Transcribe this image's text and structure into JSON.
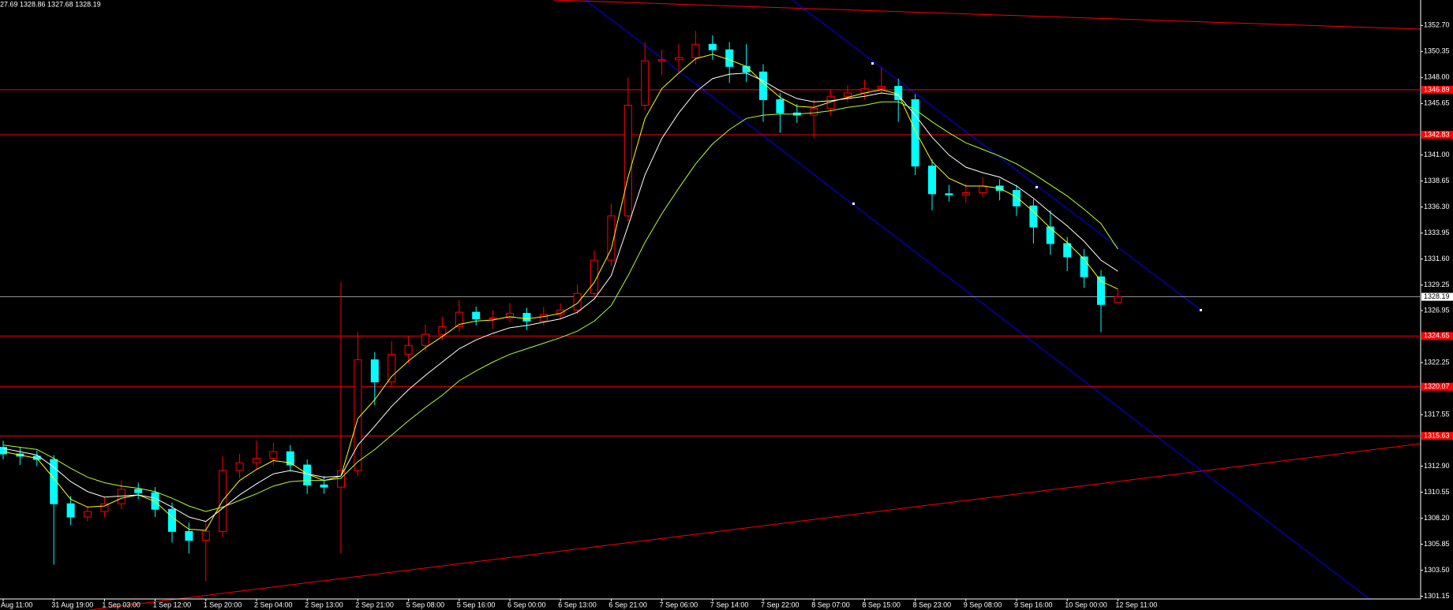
{
  "chart_data": {
    "type": "candlestick",
    "header": "27.69 1328.86 1327.68 1328.19",
    "categories": [
      "Aug 11:00",
      null,
      null,
      "31 Aug 19:00",
      null,
      null,
      "1 Sep 03:00",
      null,
      null,
      "1 Sep 12:00",
      null,
      null,
      "1 Sep 20:00",
      null,
      null,
      "2 Sep 04:00",
      null,
      null,
      "2 Sep 13:00",
      null,
      null,
      "2 Sep 21:00",
      null,
      null,
      "5 Sep 08:00",
      null,
      null,
      "5 Sep 16:00",
      null,
      null,
      "6 Sep 00:00",
      null,
      null,
      "6 Sep 13:00",
      null,
      null,
      "6 Sep 21:00",
      null,
      null,
      "7 Sep 06:00",
      null,
      null,
      "7 Sep 14:00",
      null,
      null,
      "7 Sep 22:00",
      null,
      null,
      "8 Sep 07:00",
      null,
      null,
      "8 Sep 15:00",
      null,
      null,
      "8 Sep 23:00",
      null,
      null,
      "9 Sep 08:00",
      null,
      null,
      "9 Sep 16:00",
      null,
      null,
      "10 Sep 00:00",
      null,
      null,
      "12 Sep 11:00"
    ],
    "open": [
      1314.6,
      1314.0,
      1313.8,
      1313.5,
      1309.5,
      1308.3,
      1308.8,
      1309.5,
      1310.8,
      1310.5,
      1309.0,
      1307.0,
      1306.2,
      1307.0,
      1312.5,
      1313.2,
      1313.6,
      1314.2,
      1313.0,
      1311.2,
      1311.0,
      1312.5,
      1322.5,
      1320.5,
      1323.0,
      1323.8,
      1324.8,
      1325.5,
      1326.8,
      1326.2,
      1326.3,
      1326.7,
      1326.0,
      1326.6,
      1327.0,
      1328.5,
      1331.5,
      1335.5,
      1345.5,
      1349.5,
      1349.6,
      1349.8,
      1351.0,
      1350.5,
      1349.0,
      1348.5,
      1346.0,
      1344.8,
      1344.6,
      1345.2,
      1346.3,
      1346.6,
      1347.0,
      1347.2,
      1346.0,
      1340.0,
      1337.5,
      1337.4,
      1337.6,
      1338.2,
      1337.8,
      1336.4,
      1334.5,
      1333.0,
      1331.8,
      1330.0,
      1327.69
    ],
    "high": [
      1315.2,
      1314.6,
      1314.3,
      1313.9,
      1310.2,
      1309.3,
      1310.1,
      1311.6,
      1311.4,
      1311.0,
      1309.6,
      1307.8,
      1307.8,
      1313.8,
      1314.0,
      1315.2,
      1315.0,
      1314.8,
      1313.5,
      1312.0,
      1329.5,
      1325.0,
      1323.2,
      1324.2,
      1324.6,
      1325.7,
      1326.4,
      1327.9,
      1327.3,
      1327.0,
      1327.6,
      1327.2,
      1327.3,
      1327.6,
      1329.3,
      1332.4,
      1336.6,
      1348.0,
      1351.2,
      1350.5,
      1351.0,
      1352.2,
      1351.8,
      1351.2,
      1351.0,
      1349.2,
      1346.6,
      1345.6,
      1346.0,
      1346.9,
      1347.3,
      1347.8,
      1348.9,
      1347.9,
      1346.5,
      1340.6,
      1338.3,
      1338.4,
      1339.0,
      1338.8,
      1338.3,
      1337.0,
      1336.0,
      1333.6,
      1332.5,
      1330.6,
      1328.86
    ],
    "low": [
      1313.5,
      1313.0,
      1312.9,
      1304.0,
      1307.6,
      1307.9,
      1308.3,
      1309.0,
      1309.9,
      1308.3,
      1306.0,
      1305.0,
      1302.5,
      1306.5,
      1311.8,
      1312.6,
      1313.0,
      1312.4,
      1310.4,
      1310.4,
      1305.0,
      1312.0,
      1318.4,
      1320.0,
      1322.2,
      1323.3,
      1324.3,
      1325.0,
      1325.6,
      1325.3,
      1325.9,
      1325.2,
      1325.6,
      1326.2,
      1326.6,
      1328.1,
      1331.0,
      1335.0,
      1345.0,
      1348.2,
      1348.5,
      1349.2,
      1349.6,
      1347.5,
      1347.6,
      1344.0,
      1343.0,
      1343.9,
      1342.5,
      1344.6,
      1345.8,
      1346.0,
      1346.5,
      1344.0,
      1339.2,
      1336.0,
      1336.8,
      1336.7,
      1337.2,
      1336.9,
      1335.5,
      1333.0,
      1332.0,
      1330.5,
      1329.0,
      1325.0,
      1327.68
    ],
    "close": [
      1314.0,
      1313.8,
      1313.5,
      1309.5,
      1308.3,
      1308.8,
      1309.5,
      1310.8,
      1310.5,
      1309.0,
      1307.0,
      1306.2,
      1307.0,
      1312.5,
      1313.2,
      1313.6,
      1314.2,
      1313.0,
      1311.2,
      1311.0,
      1312.5,
      1322.5,
      1320.5,
      1323.0,
      1323.8,
      1324.8,
      1325.5,
      1326.8,
      1326.2,
      1326.3,
      1326.7,
      1326.0,
      1326.6,
      1327.0,
      1328.5,
      1331.5,
      1335.5,
      1345.5,
      1349.5,
      1349.6,
      1349.8,
      1351.0,
      1350.5,
      1349.0,
      1348.5,
      1346.0,
      1344.8,
      1344.6,
      1345.2,
      1346.3,
      1346.6,
      1347.0,
      1347.2,
      1346.0,
      1340.0,
      1337.5,
      1337.4,
      1337.6,
      1338.2,
      1337.8,
      1336.4,
      1334.5,
      1333.0,
      1331.8,
      1330.0,
      1327.5,
      1328.19
    ],
    "up_color": "#ff0000",
    "down_color": "#00ffff",
    "ma": [
      {
        "color": "#ffff00",
        "values": [
          1314.2,
          1313.9,
          1313.6,
          1311.8,
          1309.9,
          1309.2,
          1309.3,
          1310.0,
          1310.3,
          1309.7,
          1308.3,
          1307.2,
          1307.1,
          1309.8,
          1311.6,
          1312.6,
          1313.4,
          1313.2,
          1312.2,
          1311.6,
          1312.0,
          1317.2,
          1318.9,
          1321.0,
          1322.4,
          1323.6,
          1324.6,
          1325.7,
          1326.0,
          1326.1,
          1326.4,
          1326.2,
          1326.4,
          1326.7,
          1327.6,
          1329.5,
          1332.5,
          1339.0,
          1344.3,
          1347.0,
          1348.4,
          1349.7,
          1350.1,
          1349.6,
          1349.0,
          1347.5,
          1346.2,
          1345.4,
          1345.3,
          1345.8,
          1346.2,
          1346.6,
          1346.9,
          1346.5,
          1343.2,
          1340.4,
          1338.9,
          1338.2,
          1338.2,
          1338.0,
          1337.2,
          1335.9,
          1334.4,
          1333.1,
          1331.6,
          1329.6,
          1328.9
        ]
      },
      {
        "color": "#ffffff",
        "values": [
          1314.5,
          1314.2,
          1313.9,
          1312.8,
          1311.5,
          1310.6,
          1310.1,
          1310.2,
          1310.3,
          1310.0,
          1309.2,
          1308.3,
          1307.9,
          1309.1,
          1310.3,
          1311.3,
          1312.2,
          1312.5,
          1312.2,
          1311.9,
          1312.0,
          1314.8,
          1316.5,
          1318.3,
          1319.8,
          1321.1,
          1322.3,
          1323.5,
          1324.3,
          1324.9,
          1325.4,
          1325.6,
          1325.9,
          1326.2,
          1326.8,
          1328.0,
          1330.1,
          1334.6,
          1339.2,
          1342.5,
          1344.8,
          1346.7,
          1347.9,
          1348.3,
          1348.4,
          1347.7,
          1346.8,
          1346.1,
          1345.8,
          1345.9,
          1346.1,
          1346.3,
          1346.6,
          1346.4,
          1344.6,
          1342.6,
          1341.0,
          1339.9,
          1339.4,
          1339.0,
          1338.2,
          1337.1,
          1335.8,
          1334.6,
          1333.2,
          1331.5,
          1330.5
        ]
      },
      {
        "color": "#adff2f",
        "values": [
          1314.8,
          1314.6,
          1314.4,
          1313.6,
          1312.7,
          1311.9,
          1311.4,
          1311.1,
          1310.9,
          1310.6,
          1310.0,
          1309.3,
          1308.8,
          1309.2,
          1309.8,
          1310.4,
          1311.1,
          1311.5,
          1311.6,
          1311.6,
          1311.8,
          1313.3,
          1314.4,
          1315.7,
          1317.0,
          1318.2,
          1319.3,
          1320.6,
          1321.5,
          1322.3,
          1323.0,
          1323.5,
          1324.0,
          1324.5,
          1325.1,
          1326.0,
          1327.4,
          1330.1,
          1333.1,
          1335.7,
          1338.0,
          1340.2,
          1342.0,
          1343.3,
          1344.3,
          1344.6,
          1344.7,
          1344.7,
          1344.8,
          1345.0,
          1345.3,
          1345.5,
          1345.8,
          1345.8,
          1345.1,
          1344.0,
          1343.0,
          1342.1,
          1341.5,
          1340.9,
          1340.2,
          1339.3,
          1338.3,
          1337.3,
          1336.1,
          1334.8,
          1332.5
        ]
      }
    ],
    "levels": [
      {
        "value": 1346.89,
        "label": "1346.89"
      },
      {
        "value": 1342.83,
        "label": "1342.83"
      },
      {
        "value": 1324.65,
        "label": "1324.65"
      },
      {
        "value": 1320.07,
        "label": "1320.07"
      },
      {
        "value": 1315.63,
        "label": "1315.63"
      }
    ],
    "level_color": "#ff0000",
    "current": {
      "value": 1328.19,
      "label": "1328.19"
    },
    "current_color": "#c0c0c0",
    "ylim": [
      1300.9,
      1355.0
    ],
    "yticks": [
      {
        "value": 1352.7,
        "label": "1352.70"
      },
      {
        "value": 1350.35,
        "label": "1350.35"
      },
      {
        "value": 1348.0,
        "label": "1348.00"
      },
      {
        "value": 1345.65,
        "label": "1345.65"
      },
      {
        "value": 1341.0,
        "label": "1341.00"
      },
      {
        "value": 1338.65,
        "label": "1338.65"
      },
      {
        "value": 1336.3,
        "label": "1336.30"
      },
      {
        "value": 1333.95,
        "label": "1333.95"
      },
      {
        "value": 1331.6,
        "label": "1331.60"
      },
      {
        "value": 1329.25,
        "label": "1329.25"
      },
      {
        "value": 1326.95,
        "label": "1326.95"
      },
      {
        "value": 1322.25,
        "label": "1322.25"
      },
      {
        "value": 1317.55,
        "label": "1317.55"
      },
      {
        "value": 1312.9,
        "label": "1312.90"
      },
      {
        "value": 1310.55,
        "label": "1310.55"
      },
      {
        "value": 1308.2,
        "label": "1308.20"
      },
      {
        "value": 1305.85,
        "label": "1305.85"
      },
      {
        "value": 1303.5,
        "label": "1303.50"
      },
      {
        "value": 1301.15,
        "label": "1301.15"
      }
    ]
  }
}
